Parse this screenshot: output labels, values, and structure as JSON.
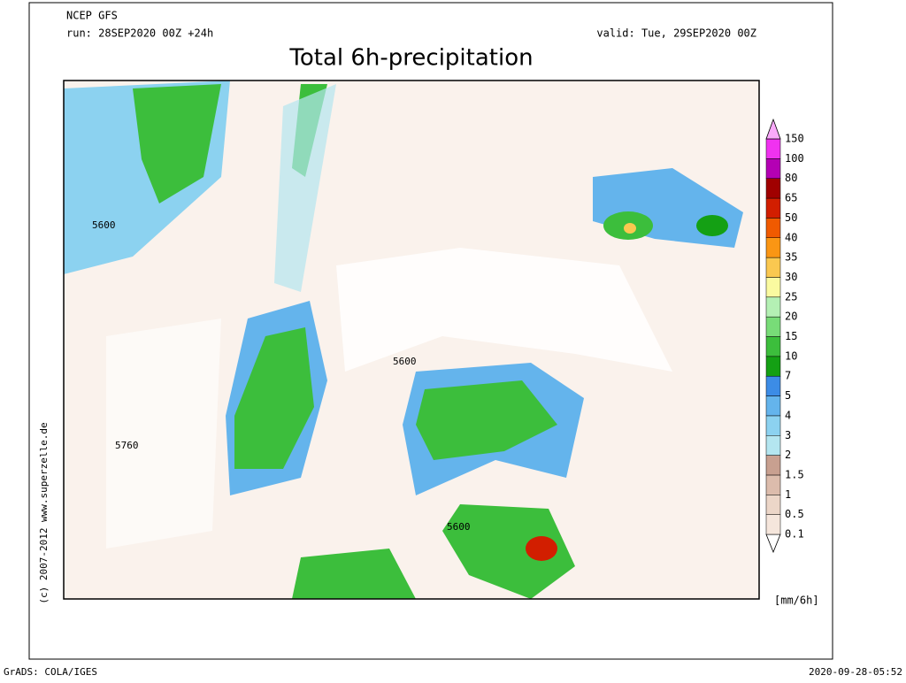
{
  "header": {
    "model": "NCEP GFS",
    "run": "run: 28SEP2020 00Z +24h",
    "valid": "valid: Tue, 29SEP2020 00Z",
    "title": "Total 6h-precipitation"
  },
  "map": {
    "contour_labels": [
      "5600",
      "5600",
      "5760",
      "5600"
    ]
  },
  "legend": {
    "unit": "[mm/6h]",
    "levels": [
      {
        "label": "0.1",
        "color": "#f5e6dc"
      },
      {
        "label": "0.5",
        "color": "#ecd6c8"
      },
      {
        "label": "1",
        "color": "#dcbcac"
      },
      {
        "label": "1.5",
        "color": "#c8a090"
      },
      {
        "label": "2",
        "color": "#b4e6f0"
      },
      {
        "label": "3",
        "color": "#8cd2f0"
      },
      {
        "label": "4",
        "color": "#64b4ec"
      },
      {
        "label": "5",
        "color": "#3c8ce6"
      },
      {
        "label": "7",
        "color": "#14a014"
      },
      {
        "label": "10",
        "color": "#3cbe3c"
      },
      {
        "label": "15",
        "color": "#78dc78"
      },
      {
        "label": "20",
        "color": "#b4f0b4"
      },
      {
        "label": "25",
        "color": "#fafaa0"
      },
      {
        "label": "30",
        "color": "#fac850"
      },
      {
        "label": "35",
        "color": "#fa9614"
      },
      {
        "label": "40",
        "color": "#f05a00"
      },
      {
        "label": "50",
        "color": "#d21e00"
      },
      {
        "label": "65",
        "color": "#a00000"
      },
      {
        "label": "80",
        "color": "#b400b4"
      },
      {
        "label": "100",
        "color": "#f032f0"
      },
      {
        "label": "150",
        "color": "#faaafa"
      }
    ]
  },
  "credit": "(c) 2007-2012 www.superzelle.de",
  "footer": {
    "left": "GrADS: COLA/IGES",
    "right": "2020-09-28-05:52"
  }
}
